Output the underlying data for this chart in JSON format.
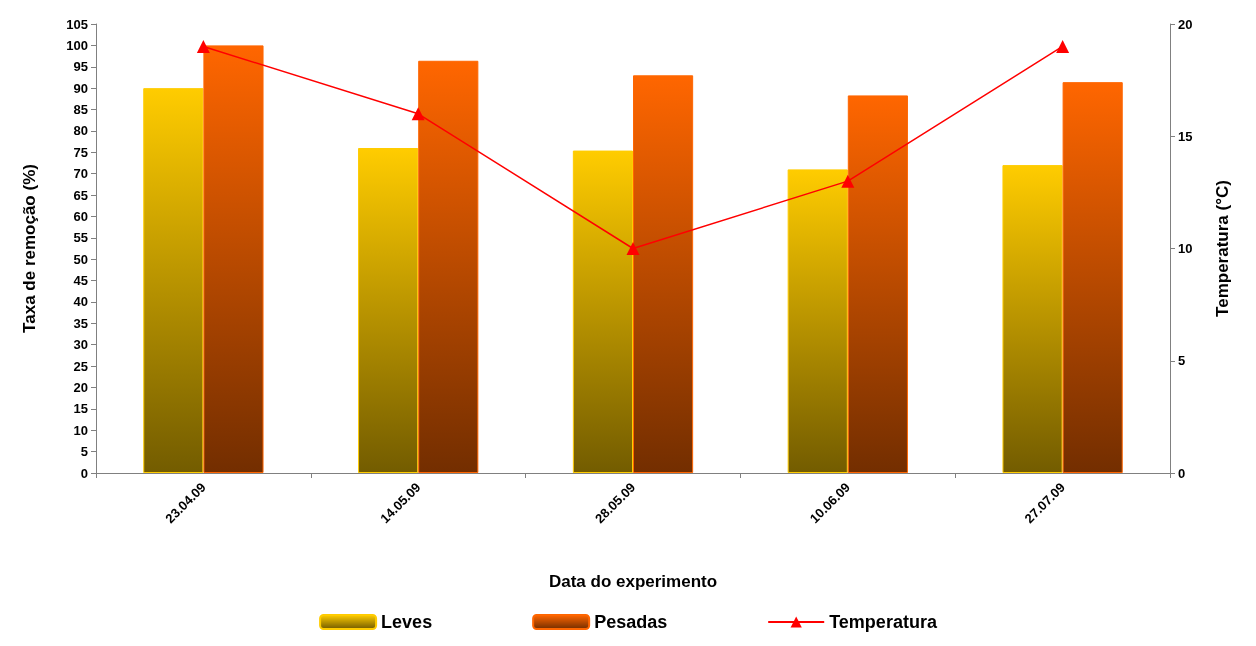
{
  "chart_data": {
    "type": "bar",
    "xlabel": "Data do experimento",
    "ylabel": "Taxa de remoção (%)",
    "y2label": "Temperatura (°C)",
    "categories": [
      "23.04.09",
      "14.05.09",
      "28.05.09",
      "10.06.09",
      "27.07.09"
    ],
    "series": [
      {
        "name": "Leves",
        "color": "#ffcc00",
        "values": [
          90,
          76,
          75.4,
          71,
          72
        ]
      },
      {
        "name": "Pesadas",
        "color": "#ff6600",
        "values": [
          100,
          96.4,
          93,
          88.3,
          91.4
        ]
      },
      {
        "name": "Temperatura",
        "type": "line",
        "axis": "y2",
        "color": "#ff0000",
        "marker": "triangle",
        "values": [
          19,
          16,
          10,
          13,
          19
        ]
      }
    ],
    "ylim": [
      0,
      105
    ],
    "yticks": [
      0,
      5,
      10,
      15,
      20,
      25,
      30,
      35,
      40,
      45,
      50,
      55,
      60,
      65,
      70,
      75,
      80,
      85,
      90,
      95,
      100,
      105
    ],
    "y2lim": [
      0,
      20
    ],
    "y2ticks": [
      0,
      5,
      10,
      15,
      20
    ],
    "grid": false,
    "legend": "bottom"
  }
}
